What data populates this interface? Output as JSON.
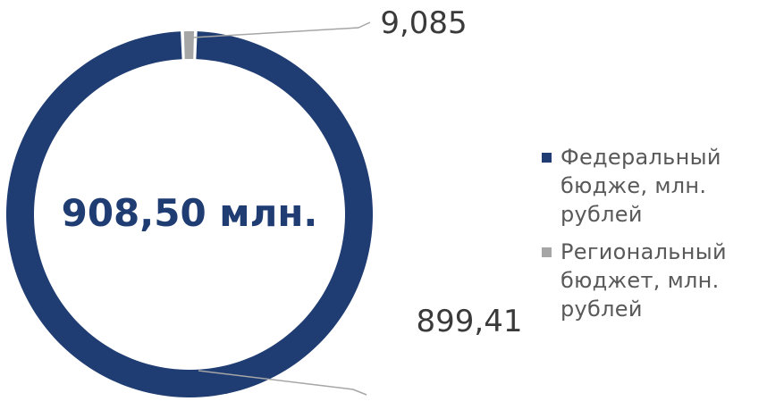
{
  "chart_data": {
    "type": "pie",
    "variant": "donut",
    "center_label": "908,50 млн.",
    "slices": [
      {
        "name": "Федеральный бюдже, млн. рублей",
        "value": 899.41,
        "label": "899,41",
        "color": "#1f3d73"
      },
      {
        "name": "Региональный бюджет, млн. рублей",
        "value": 9.085,
        "label": "9,085",
        "color": "#a6a6a6"
      }
    ],
    "legend_position": "right"
  },
  "colors": {
    "center_text": "#1f3d73",
    "leader_line": "#a6a6a6",
    "data_label": "#3a3a3a",
    "legend_text": "#595959"
  }
}
